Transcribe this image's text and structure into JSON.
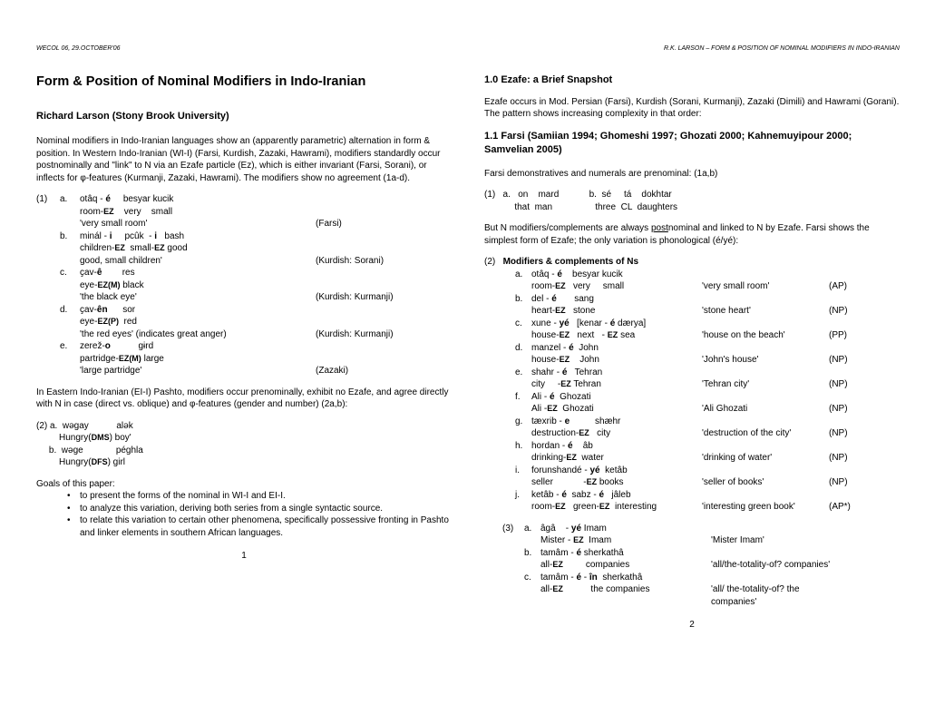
{
  "header": {
    "left": "WECOL 06, 29.OCTOBER'06",
    "right": "R.K. LARSON – FORM & POSITION OF NOMINAL MODIFIERS IN INDO-IRANIAN"
  },
  "left_page": {
    "title": "Form & Position of Nominal Modifiers in Indo-Iranian",
    "author": "Richard Larson (Stony Brook University)",
    "intro": "Nominal modifiers in Indo-Iranian languages show an (apparently parametric) alternation in form & position.  In Western Indo-Iranian (WI-I) (Farsi, Kurdish, Zazaki, Hawrami), modifiers standardly occur postnominally and \"link\" to N via an Ezafe particle (Ez), which is either invariant (Farsi, Sorani), or inflects for φ-features (Kurmanji, Zazaki, Hawrami). The modifiers show no agreement (1a-d).",
    "ex1": [
      {
        "n": "(1)",
        "l": "a.",
        "line1": "otâq - é     besyar kucik",
        "line2_pre": "room-",
        "line2_ez": "EZ",
        "line2_post": "    very    small",
        "line3": "'very small room'",
        "lang": "(Farsi)"
      },
      {
        "n": "",
        "l": "b.",
        "line1": "minál - i     pcûk  - i   bash",
        "line2_pre": "children-",
        "line2_ez": "EZ",
        "line2_post": "  small-",
        "line2_ez2": "EZ",
        "line2_post2": " good",
        "line3": "good, small children'",
        "lang": "(Kurdish: Sorani)"
      },
      {
        "n": "",
        "l": "c.",
        "line1": "ҫav-ê        res",
        "line2_pre": "eye-",
        "line2_ez": "EZ(M)",
        "line2_post": " black",
        "line3": "'the black eye'",
        "lang": "(Kurdish: Kurmanji)"
      },
      {
        "n": "",
        "l": "d.",
        "line1": "ҫav-ên      sor",
        "line2_pre": "eye-",
        "line2_ez": "EZ(P)",
        "line2_post": "  red",
        "line3": "'the red eyes' (indicates great anger)",
        "lang": "(Kurdish: Kurmanji)"
      },
      {
        "n": "",
        "l": "e.",
        "line1": "zerež-o           gɨrd",
        "line2_pre": "partridge-",
        "line2_ez": "EZ(M)",
        "line2_post": " large",
        "line3": "'large partridge'",
        "lang": "(Zazaki)"
      }
    ],
    "para2": "In Eastern Indo-Iranian (EI-I) Pashto, modifiers occur prenominally, exhibit no Ezafe, and agree directly with N in case (direct vs. oblique) and φ-features (gender and number) (2a,b):",
    "ex2a_line1": "(2) a.  wəgay           alək",
    "ex2a_line2_pre": "         Hungry(",
    "ex2a_line2_ez": "DMS",
    "ex2a_line2_post": ") boy'",
    "ex2b_line1": "     b.  wəge             péghla",
    "ex2b_line2_pre": "         Hungry(",
    "ex2b_line2_ez": "DFS",
    "ex2b_line2_post": ") girl",
    "goals_head": "Goals of this paper:",
    "goals": [
      "to present the forms of the nominal in WI-I and EI-I.",
      "to analyze this variation, deriving both series from a single syntactic source.",
      "to relate this variation to certain other phenomena, specifically possessive fronting in Pashto and linker elements in southern African languages."
    ],
    "page_num": "1"
  },
  "right_page": {
    "sec10": "1.0  Ezafe: a Brief Snapshot",
    "para1": "Ezafe occurs in Mod. Persian (Farsi), Kurdish (Sorani, Kurmanji), Zazaki (Dimili) and Hawrami (Gorani). The pattern shows increasing complexity in that order:",
    "sec11": "1.1     Farsi (Samiian 1994; Ghomeshi 1997; Ghozati 2000; Kahnemuyipour 2000; Samvelian 2005)",
    "para2": "Farsi demonstratives and numerals are prenominal: (1a,b)",
    "ex1_a": "(1)   a.   on    mard            b.  sé     tá    dokhtar",
    "ex1_a2": "            that  man                 three  CL  daughters",
    "para3_pre": "But N modifiers/complements are always ",
    "para3_u": "post",
    "para3_post": "nominal and linked to N by Ezafe. Farsi shows the simplest form of Ezafe; the only variation is phonological (é/yé):",
    "ex2_head": "(2)   Modifiers & complements of Ns",
    "ex2": [
      {
        "l": "a.",
        "t1": "otâq - é    besyar kucik",
        "t2_pre": "room-",
        "t2_ez": "EZ",
        "t2_post": "   very     small",
        "g": "'very small room'",
        "c": "(AP)"
      },
      {
        "l": "b.",
        "t1": "del - é       sang",
        "t2_pre": "heart-",
        "t2_ez": "EZ",
        "t2_post": "   stone",
        "g": "'stone heart'",
        "c": "(NP)"
      },
      {
        "l": "c.",
        "t1": "xune - yé   [kenar - é dærya]",
        "t2_pre": "house-",
        "t2_ez": "EZ",
        "t2_post": "   next   - ",
        "t2_ez2": "EZ",
        "t2_post2": " sea",
        "g": "'house on the beach'",
        "c": "(PP)"
      },
      {
        "l": "d.",
        "t1": "manzel - é  John",
        "t2_pre": "house-",
        "t2_ez": "EZ",
        "t2_post": "    John",
        "g": "'John's house'",
        "c": "(NP)"
      },
      {
        "l": "e.",
        "t1": "shahr - é   Tehran",
        "t2_pre": "city     -",
        "t2_ez": "EZ",
        "t2_post": " Tehran",
        "g": "'Tehran city'",
        "c": "(NP)"
      },
      {
        "l": "f.",
        "t1": "Ali - é  Ghozati",
        "t2_pre": "Ali -",
        "t2_ez": "EZ",
        "t2_post": "  Ghozati",
        "g": "'Ali Ghozati",
        "c": "(NP)"
      },
      {
        "l": "g.",
        "t1": "tæxrib - e          shæhr",
        "t2_pre": "destruction-",
        "t2_ez": "EZ",
        "t2_post": "   city",
        "g": "'destruction of the city'",
        "c": "(NP)"
      },
      {
        "l": "h.",
        "t1": "hordan - é    âb",
        "t2_pre": "drinking-",
        "t2_ez": "EZ",
        "t2_post": "  water",
        "g": "'drinking of water'",
        "c": "(NP)"
      },
      {
        "l": "i.",
        "t1": "forunshandé - yé  ketâb",
        "t2_pre": "seller            -",
        "t2_ez": "EZ",
        "t2_post": " books",
        "g": "'seller of books'",
        "c": "(NP)"
      },
      {
        "l": "j.",
        "t1": "ketâb - é  sabz - é   jâleb",
        "t2_pre": "room-",
        "t2_ez": "EZ",
        "t2_post": "   green-",
        "t2_ez2": "EZ",
        "t2_post2": "  interesting",
        "g": "'interesting green book'",
        "c": "(AP*)"
      }
    ],
    "ex3": [
      {
        "n": "(3)",
        "l": "a.",
        "t1": "âgâ    - yé Imam",
        "t2_pre": "Mister - ",
        "t2_ez": "EZ",
        "t2_post": "  Imam",
        "g": "'Mister Imam'",
        "c": ""
      },
      {
        "n": "",
        "l": "b.",
        "t1": "tamâm - é sherkathâ",
        "t2_pre": "all-",
        "t2_ez": "EZ",
        "t2_post": "         companies",
        "g": "'all/the-totality-of? companies'",
        "c": ""
      },
      {
        "n": "",
        "l": "c.",
        "t1": "tamâm - é - în  sherkathâ",
        "t2_pre": "all-",
        "t2_ez": "EZ",
        "t2_post": "           the companies",
        "g": "'all/ the-totality-of? the companies'",
        "c": ""
      }
    ],
    "page_num": "2"
  }
}
